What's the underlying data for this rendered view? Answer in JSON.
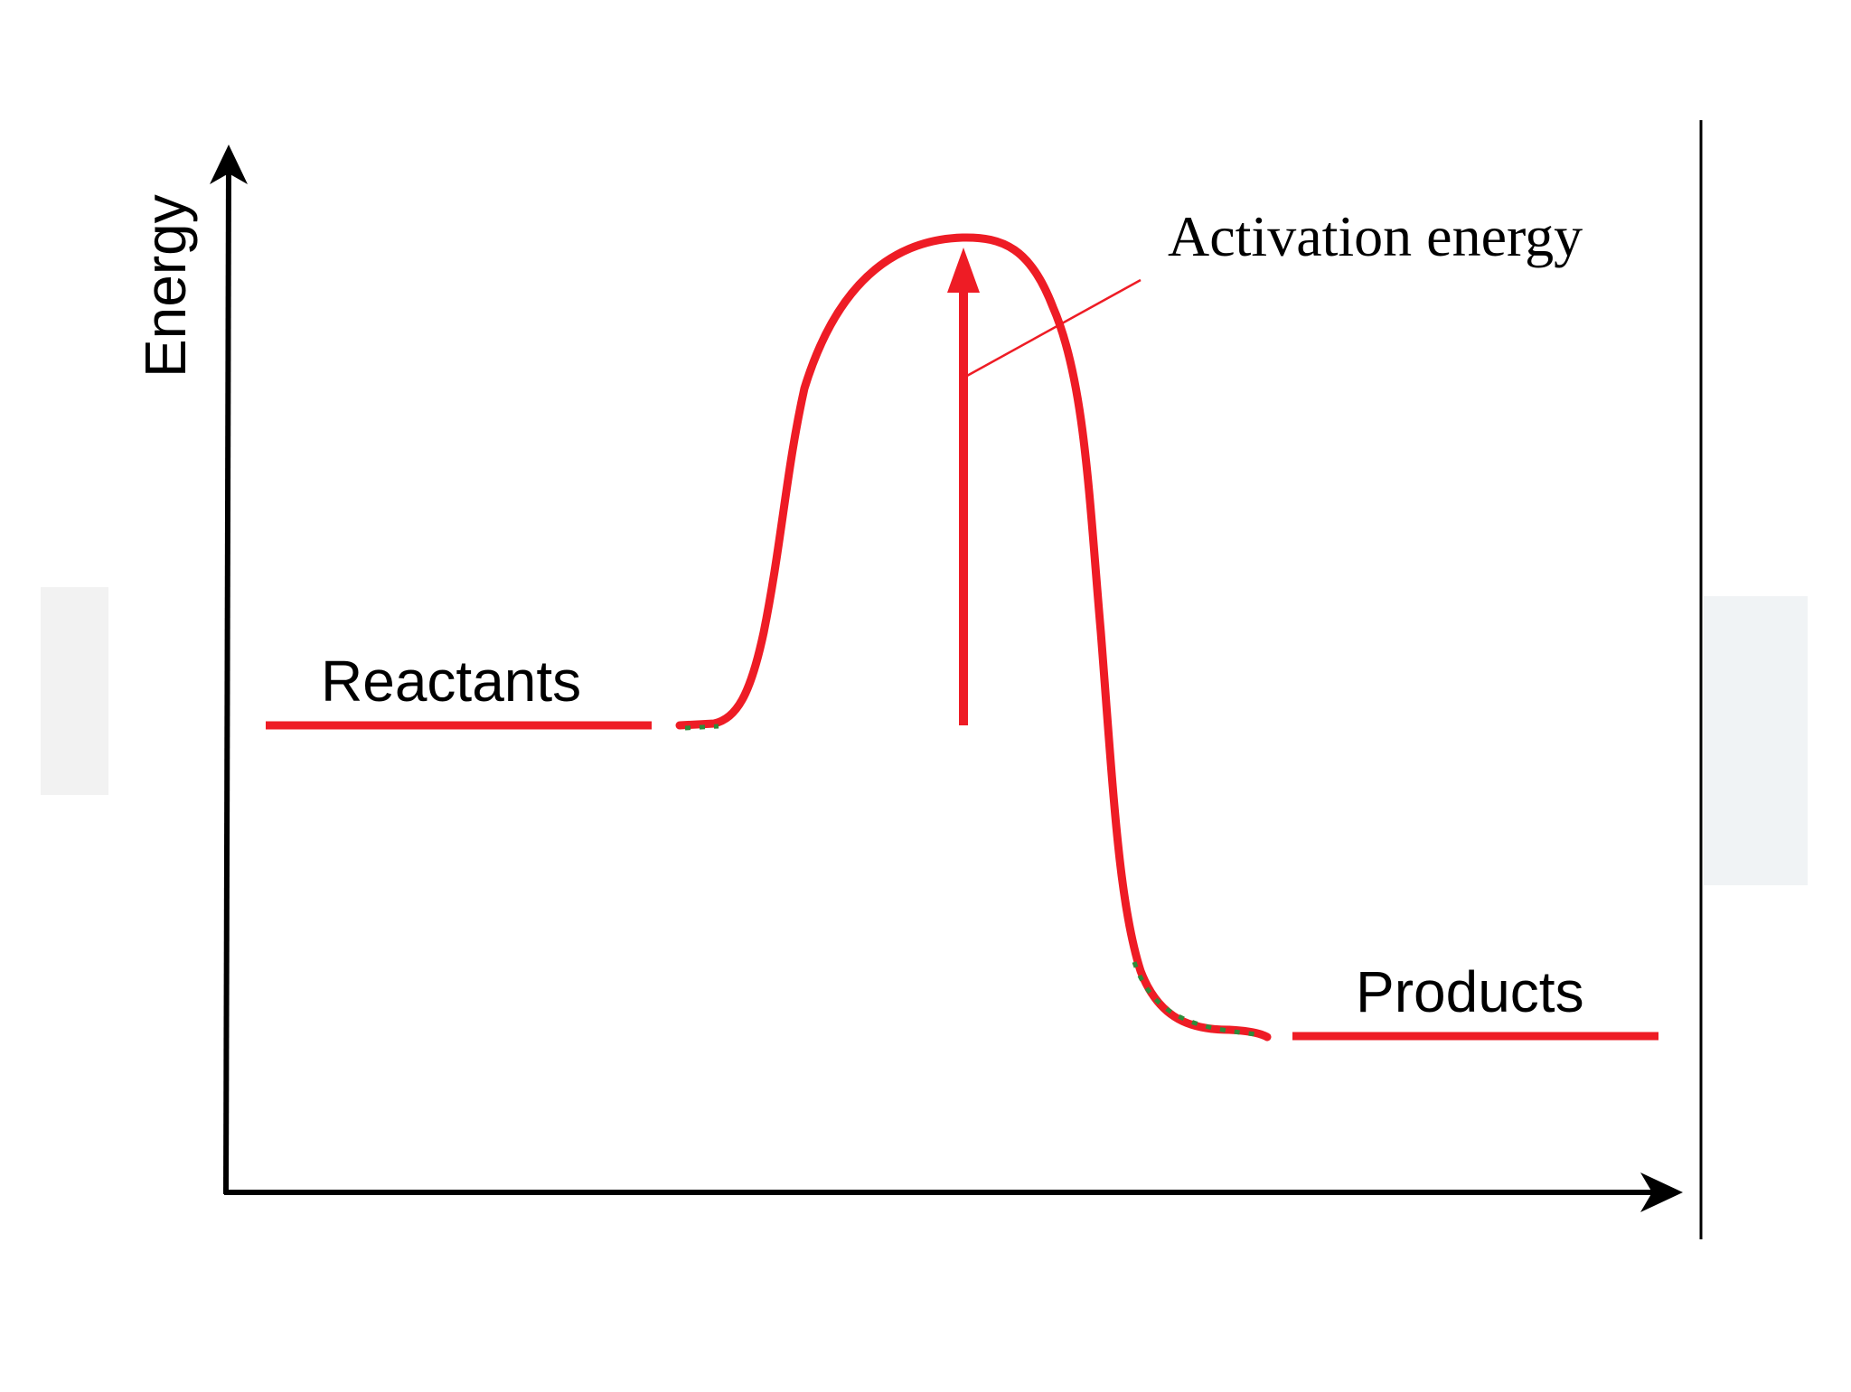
{
  "diagram": {
    "y_axis_label": "Energy",
    "annotation_label": "Activation energy",
    "reactants_label": "Reactants",
    "products_label": "Products"
  },
  "colors": {
    "curve": "#ee1c25",
    "axis": "#000000",
    "accent_dots": "#2e8b3a",
    "background": "#ffffff"
  }
}
